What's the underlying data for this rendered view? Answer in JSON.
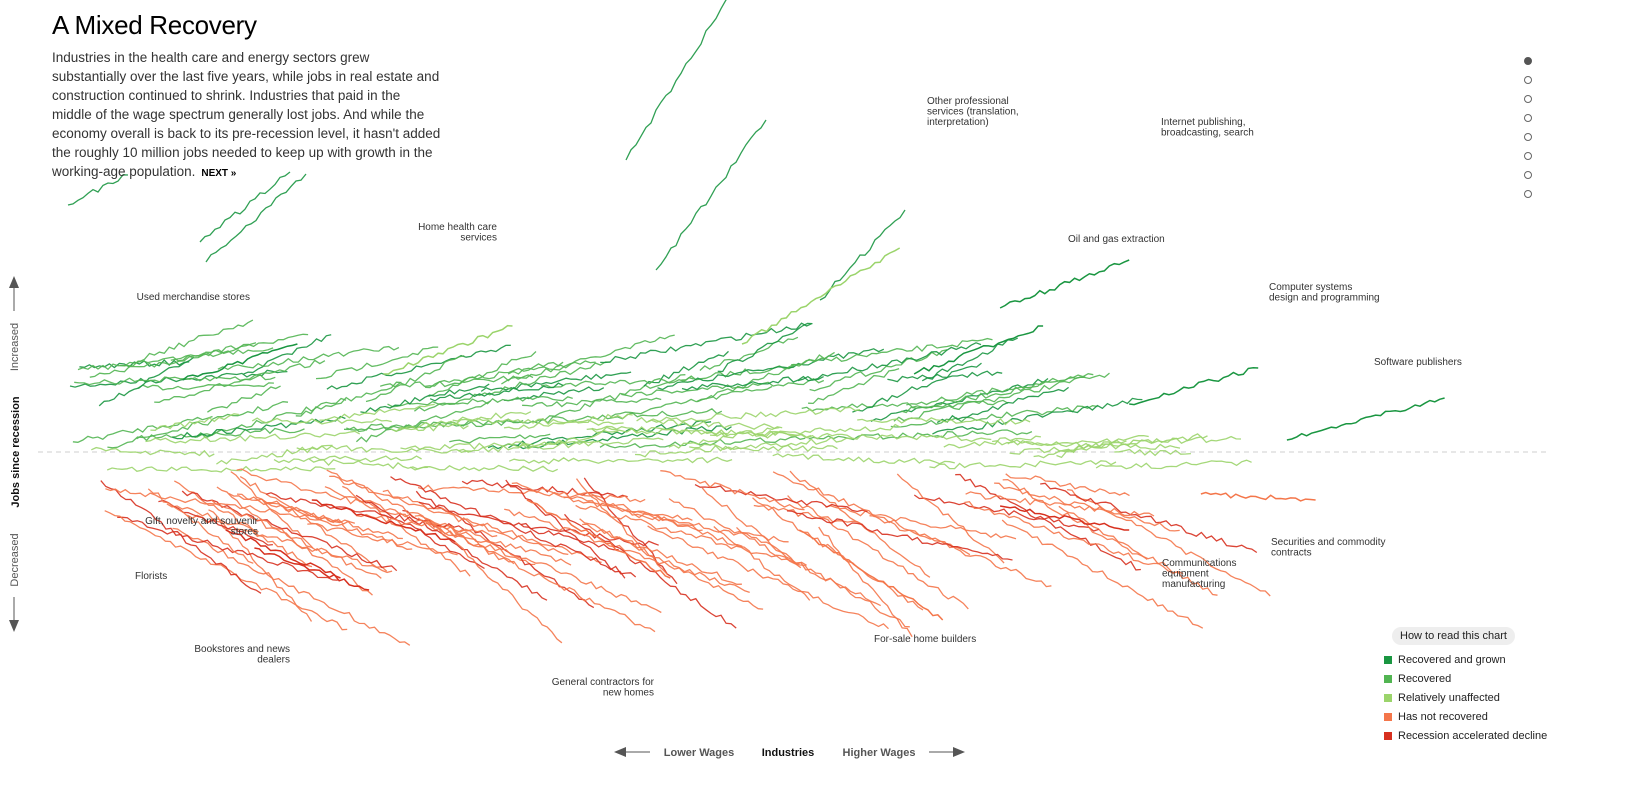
{
  "title": "A Mixed Recovery",
  "intro": "Industries in the health care and energy sectors grew substantially over the last five years, while jobs in real estate and construction continued to shrink. Industries that paid in the middle of the wage spectrum generally lost jobs. And while the economy overall is back to its pre-recession level, it hasn't added the roughly 10 million jobs needed to keep up with growth in the working-age population.",
  "next_label": "NEXT »",
  "nav": {
    "step_count": 8,
    "active_step": 1
  },
  "legend": {
    "button_label": "How to read this chart",
    "items": [
      {
        "label": "Recovered and grown",
        "color": "#1a9641"
      },
      {
        "label": "Recovered",
        "color": "#52b552"
      },
      {
        "label": "Relatively unaffected",
        "color": "#9bd46b"
      },
      {
        "label": "Has not recovered",
        "color": "#f4764a"
      },
      {
        "label": "Recession accelerated decline",
        "color": "#d7301f"
      }
    ]
  },
  "chart_data": {
    "type": "line",
    "xlabel": "Industries",
    "x_low_label": "Lower Wages",
    "x_high_label": "Higher Wages",
    "ylabel": "Jobs since recession",
    "y_up_label": "Increased",
    "y_down_label": "Decreased",
    "baseline": 0,
    "x_range": [
      0,
      100
    ],
    "y_range": [
      -45,
      70
    ],
    "series": [
      {
        "name": "Used merchandise stores",
        "category": "Recovered and grown",
        "x": [
          8,
          16
        ],
        "y": [
          12,
          18
        ]
      },
      {
        "name": "Home health care services",
        "category": "Relatively unaffected",
        "x": [
          22,
          31
        ],
        "y": [
          13,
          21
        ]
      },
      {
        "name": "Other professional services (translation, interpretation)",
        "category": "Relatively unaffected",
        "x": [
          47,
          58
        ],
        "y": [
          18,
          34
        ]
      },
      {
        "name": "Internet publishing, broadcasting, search",
        "category": "Recovered and grown",
        "x": [
          65,
          74
        ],
        "y": [
          24,
          32
        ]
      },
      {
        "name": "Oil and gas extraction",
        "category": "Recovered and grown",
        "x": [
          59,
          68
        ],
        "y": [
          13,
          21
        ]
      },
      {
        "name": "Computer systems design and programming",
        "category": "Recovered and grown",
        "x": [
          74,
          83
        ],
        "y": [
          8,
          14
        ]
      },
      {
        "name": "Software publishers",
        "category": "Recovered and grown",
        "x": [
          85,
          96
        ],
        "y": [
          2,
          9
        ]
      },
      {
        "name": "Gift, novelty and souvenir stores",
        "category": "Recession accelerated decline",
        "x": [
          17,
          27
        ],
        "y": [
          -8,
          -15
        ]
      },
      {
        "name": "Florists",
        "category": "Recession accelerated decline",
        "x": [
          11,
          19
        ],
        "y": [
          -13,
          -21
        ]
      },
      {
        "name": "Bookstores and news dealers",
        "category": "Recession accelerated decline",
        "x": [
          13,
          21
        ],
        "y": [
          -16,
          -23
        ]
      },
      {
        "name": "General contractors for new homes",
        "category": "Has not recovered",
        "x": [
          32,
          42
        ],
        "y": [
          -8,
          -21
        ]
      },
      {
        "name": "For-sale home builders",
        "category": "Has not recovered",
        "x": [
          51,
          61
        ],
        "y": [
          -13,
          -28
        ]
      },
      {
        "name": "Communications equipment manufacturing",
        "category": "Recession accelerated decline",
        "x": [
          65,
          74
        ],
        "y": [
          -9,
          -13
        ]
      },
      {
        "name": "Securities and commodity contracts",
        "category": "Has not recovered",
        "x": [
          79,
          87
        ],
        "y": [
          -7,
          -8
        ]
      }
    ]
  }
}
